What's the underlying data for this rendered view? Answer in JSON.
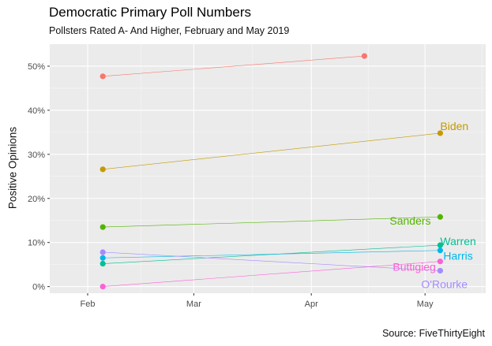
{
  "header": {
    "title": "Democratic Primary Poll Numbers",
    "subtitle": "Pollsters Rated A- And Higher, February and May 2019",
    "caption": "Source: FiveThirtyEight"
  },
  "chart_data": {
    "type": "line",
    "title": "Democratic Primary Poll Numbers",
    "subtitle": "Pollsters Rated A- And Higher, February and May 2019",
    "ylabel": "Positive Opinions",
    "xlabel": "",
    "caption": "Source: FiveThirtyEight",
    "x_ticks": [
      {
        "label": "Feb",
        "date": "2019-02-01"
      },
      {
        "label": "Mar",
        "date": "2019-03-01"
      },
      {
        "label": "Apr",
        "date": "2019-04-01"
      },
      {
        "label": "May",
        "date": "2019-05-01"
      }
    ],
    "xlim": [
      "2019-01-22",
      "2019-05-17"
    ],
    "y_ticks": [
      "0%",
      "10%",
      "20%",
      "30%",
      "40%",
      "50%"
    ],
    "ylim": [
      -0.015,
      0.55
    ],
    "grid": true,
    "legend": "none",
    "series": [
      {
        "name": "",
        "color": "#f8766d",
        "points": [
          {
            "x": "2019-02-05",
            "y": 0.477
          },
          {
            "x": "2019-04-15",
            "y": 0.523
          }
        ]
      },
      {
        "name": "Biden",
        "color": "#c49a00",
        "points": [
          {
            "x": "2019-02-05",
            "y": 0.266
          },
          {
            "x": "2019-05-05",
            "y": 0.348
          }
        ]
      },
      {
        "name": "Sanders",
        "color": "#53b400",
        "points": [
          {
            "x": "2019-02-05",
            "y": 0.135
          },
          {
            "x": "2019-05-05",
            "y": 0.158
          }
        ]
      },
      {
        "name": "Warren",
        "color": "#00c094",
        "points": [
          {
            "x": "2019-02-05",
            "y": 0.052
          },
          {
            "x": "2019-05-05",
            "y": 0.094
          }
        ]
      },
      {
        "name": "Harris",
        "color": "#00b6eb",
        "points": [
          {
            "x": "2019-02-05",
            "y": 0.065
          },
          {
            "x": "2019-05-05",
            "y": 0.082
          }
        ]
      },
      {
        "name": "O'Rourke",
        "color": "#a58aff",
        "points": [
          {
            "x": "2019-02-05",
            "y": 0.078
          },
          {
            "x": "2019-05-05",
            "y": 0.036
          }
        ]
      },
      {
        "name": "Buttigieg",
        "color": "#fb61d7",
        "points": [
          {
            "x": "2019-02-05",
            "y": 0.0
          },
          {
            "x": "2019-05-05",
            "y": 0.057
          }
        ]
      }
    ]
  }
}
